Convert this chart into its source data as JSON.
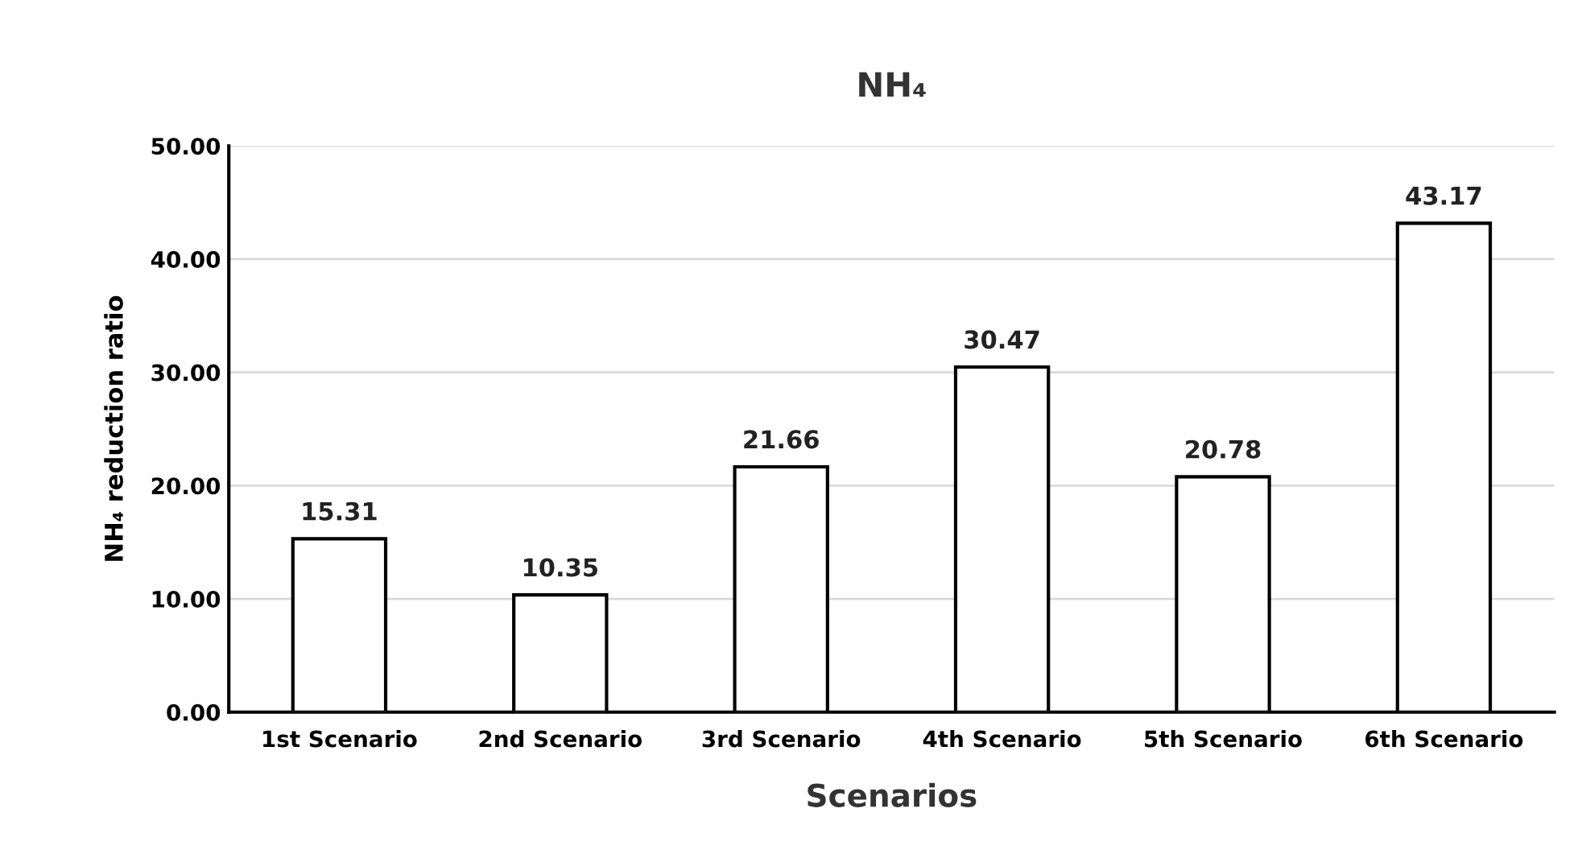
{
  "chart_data": {
    "type": "bar",
    "title": "NH₄",
    "xlabel": "Scenarios",
    "ylabel": "NH₄ reduction ratio",
    "categories": [
      "1st Scenario",
      "2nd Scenario",
      "3rd Scenario",
      "4th Scenario",
      "5th Scenario",
      "6th Scenario"
    ],
    "values": [
      15.31,
      10.35,
      21.66,
      30.47,
      20.78,
      43.17
    ],
    "color": "#ffffff",
    "ylim": [
      0,
      50
    ],
    "yticks": [
      {
        "value": 0,
        "label": "0.00"
      },
      {
        "value": 10,
        "label": "10.00"
      },
      {
        "value": 20,
        "label": "20.00"
      },
      {
        "value": 30,
        "label": "30.00"
      },
      {
        "value": 40,
        "label": "40.00"
      },
      {
        "value": 50,
        "label": "50.00"
      }
    ],
    "grid": "y",
    "data_labels": true,
    "legend": false
  }
}
